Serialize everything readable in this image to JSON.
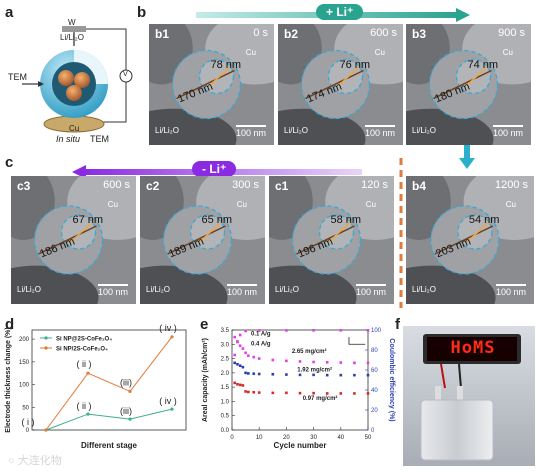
{
  "panel_letters": {
    "a": "a",
    "b": "b",
    "c": "c",
    "d": "d",
    "e": "e",
    "f": "f"
  },
  "panel_a": {
    "w": "W",
    "li": "Li/Li₂O",
    "tem_left": "TEM",
    "v": "V",
    "cu": "Cu",
    "insitu": "In situ",
    "tem_bottom": "TEM"
  },
  "arrows": {
    "plus_li": "+ Li⁺",
    "minus_li": "- Li⁺"
  },
  "tem_panels": [
    {
      "id": "b1",
      "time": "0 s",
      "d_outer": "170 nm",
      "d_inner": "78 nm",
      "cu": "Cu",
      "substrate": "Li/Li₂O",
      "scale": "100 nm"
    },
    {
      "id": "b2",
      "time": "600 s",
      "d_outer": "174 nm",
      "d_inner": "76 nm",
      "cu": "Cu",
      "substrate": "Li/Li₂O",
      "scale": "100 nm"
    },
    {
      "id": "b3",
      "time": "900 s",
      "d_outer": "180 nm",
      "d_inner": "74 nm",
      "cu": "Cu",
      "substrate": "Li/Li₂O",
      "scale": "100 nm"
    },
    {
      "id": "c3",
      "time": "600 s",
      "d_outer": "186 nm",
      "d_inner": "67 nm",
      "cu": "Cu",
      "substrate": "Li/Li₂O",
      "scale": "100 nm"
    },
    {
      "id": "c2",
      "time": "300 s",
      "d_outer": "189 nm",
      "d_inner": "65 nm",
      "cu": "Cu",
      "substrate": "Li/Li₂O",
      "scale": "100 nm"
    },
    {
      "id": "c1",
      "time": "120 s",
      "d_outer": "196 nm",
      "d_inner": "58 nm",
      "cu": "Cu",
      "substrate": "Li/Li₂O",
      "scale": "100 nm"
    },
    {
      "id": "b4",
      "time": "1200 s",
      "d_outer": "203 nm",
      "d_inner": "54 nm",
      "cu": "Cu",
      "substrate": "Li/Li₂O",
      "scale": "100 nm"
    }
  ],
  "chart_data": [
    {
      "type": "line",
      "xlabel": "Different stage",
      "ylabel": "Electrode thickness change (%)",
      "ylim": [
        0,
        220
      ],
      "yticks": [
        0,
        50,
        100,
        150,
        200
      ],
      "x": [
        "(i)",
        "(ii)",
        "(iii)",
        "(iv)"
      ],
      "series": [
        {
          "name": "Si NP@2S-CoFe₂O₄",
          "color": "#3fae8f",
          "values": [
            0,
            35,
            24,
            46
          ],
          "stage_labels": [
            "( i )",
            "( ii )",
            "(iii)",
            "( iv )"
          ]
        },
        {
          "name": "Si NP/2S-CoFe₂O₄",
          "color": "#e07b39",
          "values": [
            0,
            125,
            85,
            205
          ],
          "stage_labels": [
            "",
            "( ii )",
            "(iii)",
            "( iv )"
          ]
        }
      ]
    },
    {
      "type": "scatter",
      "xlabel": "Cycle number",
      "ylabel": "Areal capacity (mAh/cm²)",
      "y2label": "Coulombic efficiency (%)",
      "xlim": [
        0,
        50
      ],
      "ylim": [
        0,
        3.5
      ],
      "y2lim": [
        0,
        100
      ],
      "xticks": [
        0,
        10,
        20,
        30,
        40,
        50
      ],
      "yticks": [
        0.0,
        0.5,
        1.0,
        1.5,
        2.0,
        2.5,
        3.0,
        3.5
      ],
      "y2ticks": [
        0,
        20,
        40,
        60,
        80,
        100
      ],
      "annotations": [
        "0.1 A/g",
        "0.4 A/g",
        "2.65 mg/cm²",
        "1.92 mg/cm²",
        "0.97 mg/cm²"
      ],
      "series": [
        {
          "name": "2.65 mg/cm²",
          "color": "#e040e0",
          "axis": "left",
          "values": [
            [
              1,
              3.25
            ],
            [
              2,
              3.1
            ],
            [
              3,
              2.95
            ],
            [
              4,
              2.85
            ],
            [
              5,
              2.7
            ],
            [
              6,
              2.6
            ],
            [
              8,
              2.55
            ],
            [
              10,
              2.5
            ],
            [
              15,
              2.45
            ],
            [
              20,
              2.42
            ],
            [
              25,
              2.4
            ],
            [
              30,
              2.38
            ],
            [
              35,
              2.37
            ],
            [
              40,
              2.36
            ],
            [
              45,
              2.35
            ],
            [
              50,
              2.35
            ]
          ]
        },
        {
          "name": "1.92 mg/cm²",
          "color": "#2a3fb0",
          "axis": "left",
          "values": [
            [
              1,
              2.35
            ],
            [
              2,
              2.3
            ],
            [
              3,
              2.25
            ],
            [
              4,
              2.2
            ],
            [
              5,
              2.0
            ],
            [
              6,
              1.98
            ],
            [
              8,
              1.97
            ],
            [
              10,
              1.96
            ],
            [
              15,
              1.95
            ],
            [
              20,
              1.94
            ],
            [
              25,
              1.93
            ],
            [
              30,
              1.93
            ],
            [
              35,
              1.92
            ],
            [
              40,
              1.92
            ],
            [
              45,
              1.92
            ],
            [
              50,
              1.92
            ]
          ]
        },
        {
          "name": "0.97 mg/cm²",
          "color": "#d42a2a",
          "axis": "left",
          "values": [
            [
              1,
              1.65
            ],
            [
              2,
              1.6
            ],
            [
              3,
              1.58
            ],
            [
              4,
              1.56
            ],
            [
              5,
              1.35
            ],
            [
              6,
              1.33
            ],
            [
              8,
              1.32
            ],
            [
              10,
              1.31
            ],
            [
              15,
              1.3
            ],
            [
              20,
              1.3
            ],
            [
              25,
              1.29
            ],
            [
              30,
              1.29
            ],
            [
              35,
              1.28
            ],
            [
              40,
              1.28
            ],
            [
              45,
              1.28
            ],
            [
              50,
              1.28
            ]
          ]
        },
        {
          "name": "Coulombic efficiency",
          "color": "#e040e0",
          "axis": "right",
          "values": [
            [
              1,
              75
            ],
            [
              2,
              88
            ],
            [
              3,
              95
            ],
            [
              5,
              99
            ],
            [
              10,
              99.5
            ],
            [
              20,
              99.6
            ],
            [
              30,
              99.7
            ],
            [
              40,
              99.7
            ],
            [
              50,
              99.7
            ]
          ]
        }
      ]
    }
  ],
  "panel_f": {
    "display": "HoMS"
  },
  "watermark": "大连化物"
}
